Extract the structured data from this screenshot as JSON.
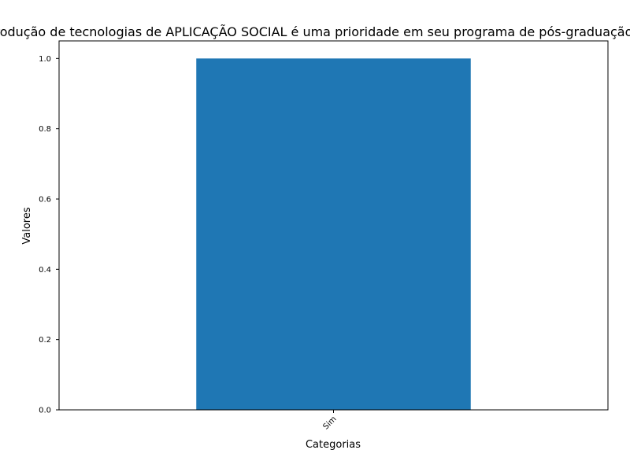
{
  "chart_data": {
    "type": "bar",
    "title": "Produção de tecnologias de APLICAÇÃO SOCIAL é uma prioridade em seu programa de pós-graduação?",
    "xlabel": "Categorias",
    "ylabel": "Valores",
    "categories": [
      "Sim"
    ],
    "values": [
      1.0
    ],
    "ylim": [
      0,
      1.05
    ],
    "yticks": [
      "0.0",
      "0.2",
      "0.4",
      "0.6",
      "0.8",
      "1.0"
    ],
    "bar_color": "#1f77b4",
    "grid": false,
    "legend": "none"
  }
}
